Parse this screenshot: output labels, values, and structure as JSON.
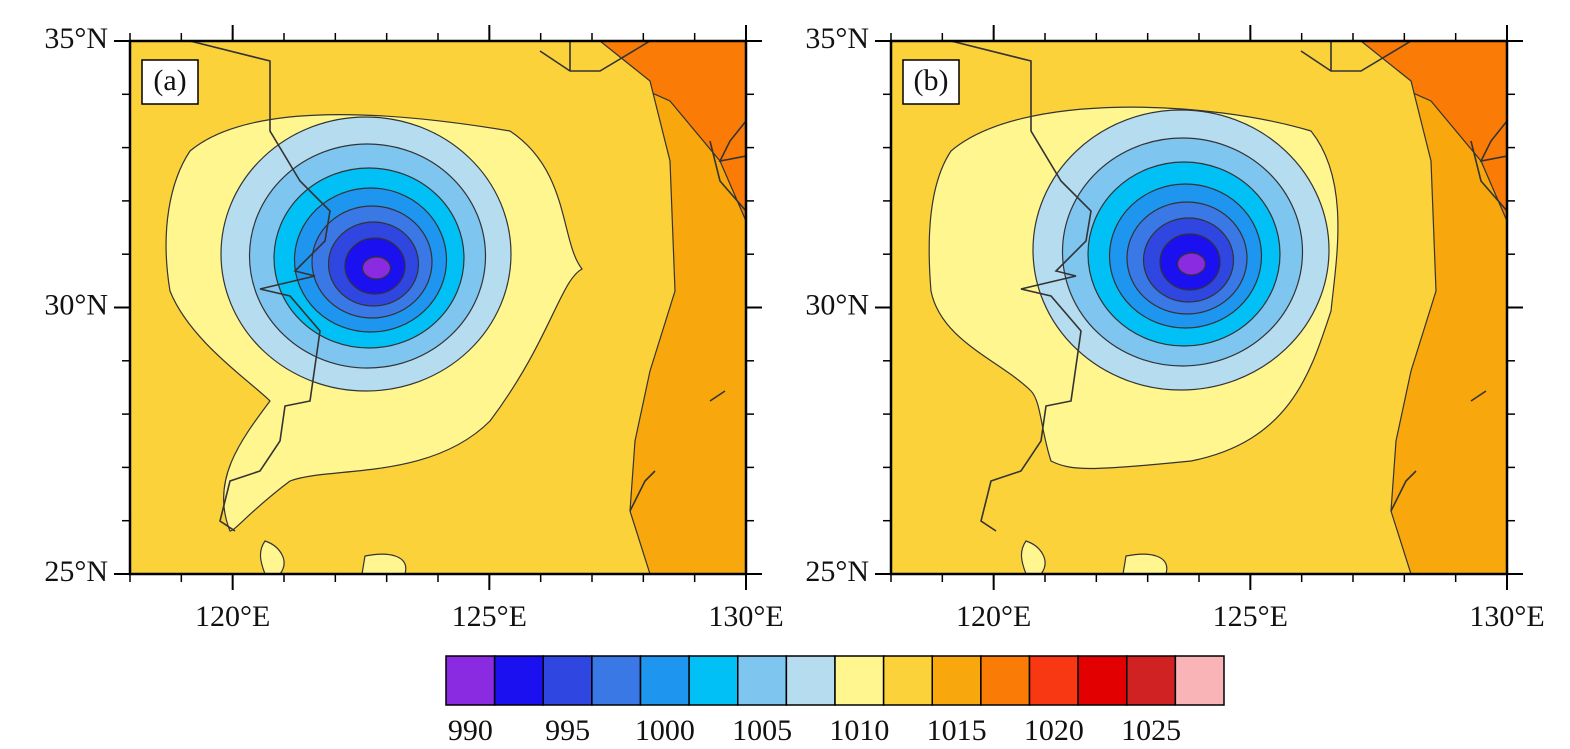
{
  "chart_data": [
    {
      "type": "contour",
      "label": "(a)",
      "xlim": [
        118,
        130
      ],
      "ylim": [
        25,
        35
      ],
      "xticks": [
        {
          "value": 120,
          "label": "120°E"
        },
        {
          "value": 125,
          "label": "125°E"
        },
        {
          "value": 130,
          "label": "130°E"
        }
      ],
      "yticks": [
        {
          "value": 25,
          "label": "25°N"
        },
        {
          "value": 30,
          "label": "30°N"
        },
        {
          "value": 35,
          "label": "35°N"
        }
      ]
    },
    {
      "type": "contour",
      "label": "(b)",
      "xlim": [
        118,
        130
      ],
      "ylim": [
        25,
        35
      ],
      "xticks": [
        {
          "value": 120,
          "label": "120°E"
        },
        {
          "value": 125,
          "label": "125°E"
        },
        {
          "value": 130,
          "label": "130°E"
        }
      ],
      "yticks": [
        {
          "value": 25,
          "label": "25°N"
        },
        {
          "value": 30,
          "label": "30°N"
        },
        {
          "value": 35,
          "label": "35°N"
        }
      ]
    }
  ],
  "colorbar": {
    "colors": [
      "#8a2be2",
      "#1a10f0",
      "#2f47e0",
      "#3a78e6",
      "#1e96f0",
      "#00c0f5",
      "#7ec6f0",
      "#b6dcf0",
      "#fff68f",
      "#fcd23a",
      "#f8a80c",
      "#fa7c06",
      "#f83812",
      "#e20000",
      "#d02222",
      "#f8b4b6"
    ],
    "ticks": [
      990,
      995,
      1000,
      1005,
      1010,
      1015,
      1020,
      1025
    ]
  }
}
